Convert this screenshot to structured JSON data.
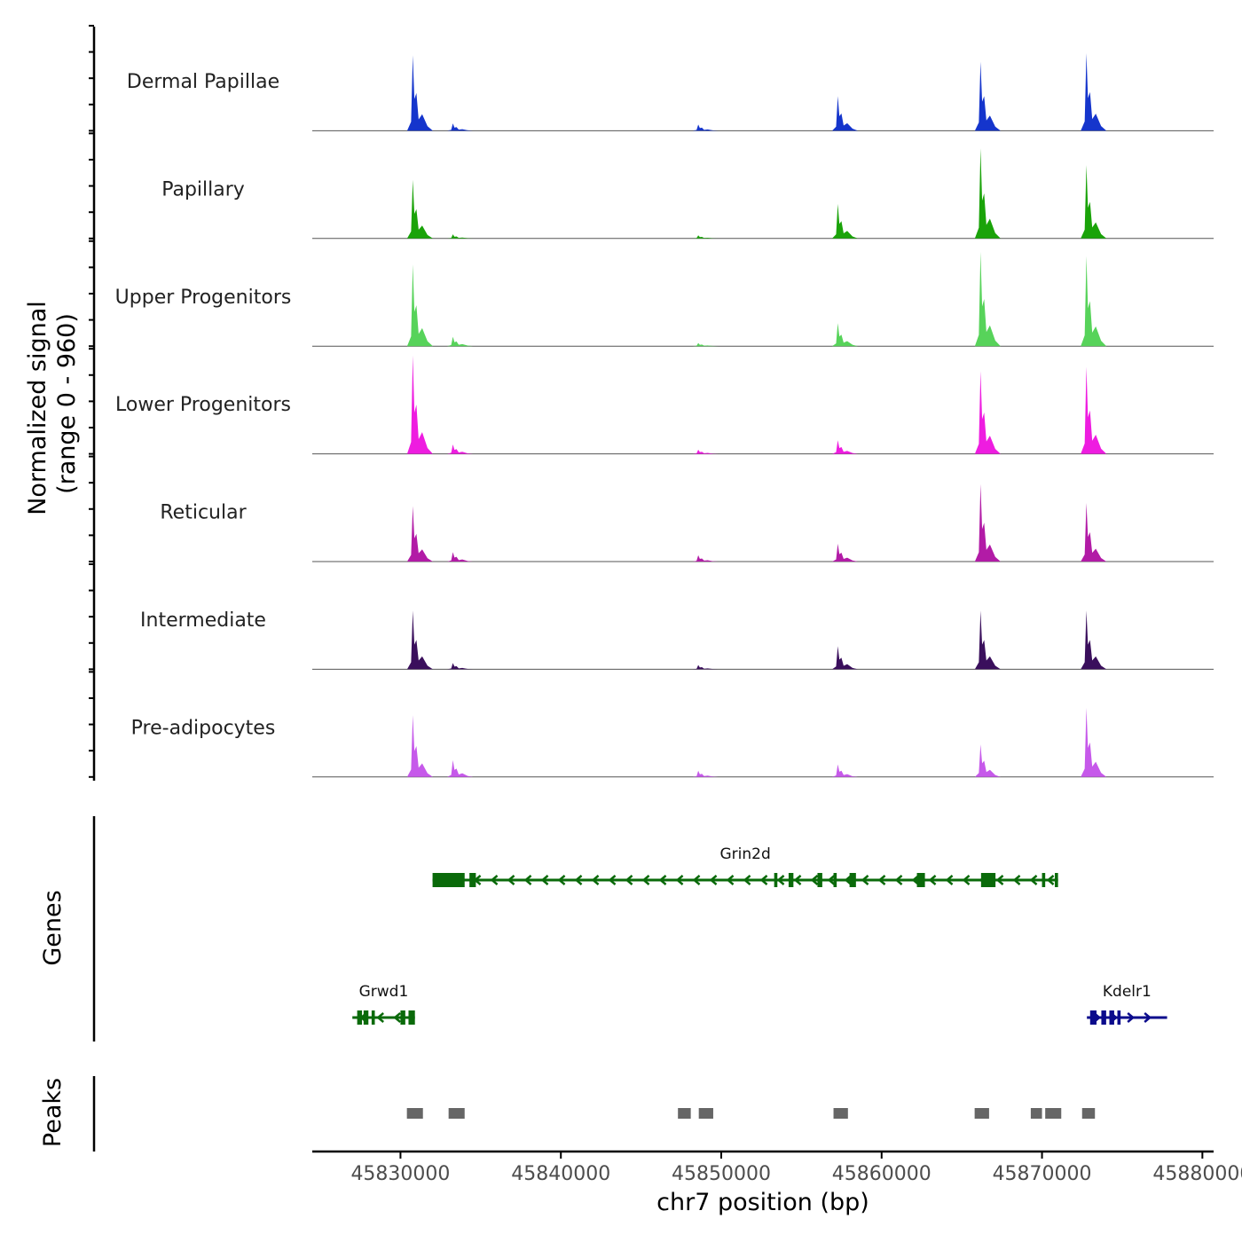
{
  "chart_data": {
    "type": "area",
    "title": "",
    "chrom": "chr7",
    "xlabel": "chr7 position (bp)",
    "xlim": [
      45824500,
      45880700
    ],
    "xticks": [
      45830000,
      45840000,
      45850000,
      45860000,
      45870000,
      45880000
    ],
    "xtick_labels": [
      "45830000",
      "45840000",
      "45850000",
      "45860000",
      "45870000",
      "45880000"
    ],
    "signal_panel": {
      "ylabel_line1": "Normalized signal",
      "ylabel_line2": "(range 0 - 960)",
      "ylim": [
        0,
        960
      ]
    },
    "peak_x": [
      45830800,
      45833300,
      45848600,
      45857300,
      45866200,
      45872800
    ],
    "tracks": [
      {
        "name": "Dermal Papillae",
        "color": "#1535cc",
        "heights": [
          720,
          70,
          60,
          330,
          660,
          740
        ]
      },
      {
        "name": "Papillary",
        "color": "#1aa309",
        "heights": [
          560,
          40,
          30,
          330,
          860,
          700
        ]
      },
      {
        "name": "Upper Progenitors",
        "color": "#57d35a",
        "heights": [
          780,
          90,
          30,
          220,
          900,
          860
        ]
      },
      {
        "name": "Lower Progenitors",
        "color": "#ee1ce0",
        "heights": [
          940,
          90,
          40,
          130,
          790,
          830
        ]
      },
      {
        "name": "Reticular",
        "color": "#b21ba6",
        "heights": [
          530,
          90,
          60,
          170,
          740,
          560
        ]
      },
      {
        "name": "Intermediate",
        "color": "#3a0f5c",
        "heights": [
          560,
          60,
          40,
          220,
          560,
          560
        ]
      },
      {
        "name": "Pre-adipocytes",
        "color": "#c659ea",
        "heights": [
          590,
          160,
          60,
          120,
          310,
          660
        ]
      }
    ],
    "genes_panel": {
      "ylabel": "Genes",
      "genes": [
        {
          "name": "Grin2d",
          "strand": "-",
          "start": 45832000,
          "end": 45871000,
          "color": "#0a6a0a",
          "row": 1,
          "exons": [
            [
              45832000,
              45834000
            ],
            [
              45834300,
              45834700
            ],
            [
              45853300,
              45853500
            ],
            [
              45854200,
              45854500
            ],
            [
              45856000,
              45856300
            ],
            [
              45857000,
              45857200
            ],
            [
              45858000,
              45858400
            ],
            [
              45862200,
              45862700
            ],
            [
              45866200,
              45867100
            ],
            [
              45870000,
              45870200
            ],
            [
              45870800,
              45871000
            ]
          ]
        },
        {
          "name": "Grwd1",
          "strand": "-",
          "start": 45827000,
          "end": 45830900,
          "color": "#0a6a0a",
          "row": 2,
          "exons": [
            [
              45827300,
              45827600
            ],
            [
              45827700,
              45828000
            ],
            [
              45828200,
              45828400
            ],
            [
              45830000,
              45830300
            ],
            [
              45830500,
              45830900
            ]
          ]
        },
        {
          "name": "Kdelr1",
          "strand": "+",
          "start": 45872800,
          "end": 45877800,
          "color": "#0b0b8c",
          "row": 2,
          "exons": [
            [
              45873000,
              45873400
            ],
            [
              45873700,
              45874000
            ],
            [
              45874200,
              45874500
            ],
            [
              45874700,
              45874900
            ]
          ]
        }
      ]
    },
    "peaks_panel": {
      "ylabel": "Peaks",
      "color": "#666666",
      "peaks": [
        [
          45830400,
          45831400
        ],
        [
          45833000,
          45834000
        ],
        [
          45847300,
          45848100
        ],
        [
          45848600,
          45849500
        ],
        [
          45857000,
          45857900
        ],
        [
          45865800,
          45866700
        ],
        [
          45869300,
          45870000
        ],
        [
          45870200,
          45871200
        ],
        [
          45872500,
          45873300
        ]
      ]
    }
  }
}
